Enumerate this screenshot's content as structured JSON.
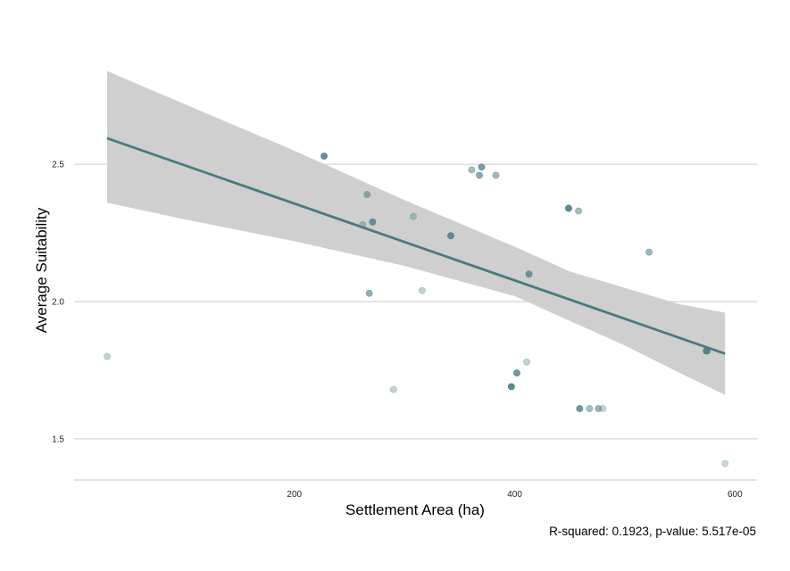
{
  "chart_data": {
    "type": "scatter",
    "title": "",
    "xlabel": "Settlement Area (ha)",
    "ylabel": "Average Suitability",
    "caption": "R-squared:  0.1923, p-value: 5.517e-05",
    "xlim": [
      0,
      620
    ],
    "ylim": [
      1.35,
      2.92
    ],
    "x_ticks": [
      200,
      400,
      600
    ],
    "y_ticks": [
      1.5,
      2.0,
      2.5
    ],
    "x_tick_labels": [
      "200",
      "400",
      "600"
    ],
    "y_tick_labels": [
      "1.5",
      "2.0",
      "2.5"
    ],
    "grid": "horizontal major lines",
    "colors": {
      "points": "#4d7d86",
      "fit_line": "#4a7a80",
      "ribbon": "#cfcfcf",
      "grid": "#d4d4d4"
    },
    "points": [
      {
        "x": 30,
        "y": 1.8,
        "alpha": 0.35
      },
      {
        "x": 227,
        "y": 2.53,
        "alpha": 0.85
      },
      {
        "x": 262,
        "y": 2.28,
        "alpha": 0.4
      },
      {
        "x": 266,
        "y": 2.39,
        "alpha": 0.55
      },
      {
        "x": 268,
        "y": 2.03,
        "alpha": 0.6
      },
      {
        "x": 271,
        "y": 2.29,
        "alpha": 0.8
      },
      {
        "x": 290,
        "y": 1.68,
        "alpha": 0.35
      },
      {
        "x": 308,
        "y": 2.31,
        "alpha": 0.35
      },
      {
        "x": 316,
        "y": 2.04,
        "alpha": 0.35
      },
      {
        "x": 342,
        "y": 2.24,
        "alpha": 0.85
      },
      {
        "x": 361,
        "y": 2.48,
        "alpha": 0.5
      },
      {
        "x": 368,
        "y": 2.46,
        "alpha": 0.65
      },
      {
        "x": 370,
        "y": 2.49,
        "alpha": 0.75
      },
      {
        "x": 383,
        "y": 2.46,
        "alpha": 0.55
      },
      {
        "x": 397,
        "y": 1.69,
        "alpha": 0.9
      },
      {
        "x": 402,
        "y": 1.74,
        "alpha": 0.8
      },
      {
        "x": 411,
        "y": 1.78,
        "alpha": 0.35
      },
      {
        "x": 413,
        "y": 2.1,
        "alpha": 0.75
      },
      {
        "x": 449,
        "y": 2.34,
        "alpha": 0.9
      },
      {
        "x": 458,
        "y": 2.33,
        "alpha": 0.5
      },
      {
        "x": 459,
        "y": 1.61,
        "alpha": 0.8
      },
      {
        "x": 468,
        "y": 1.61,
        "alpha": 0.5
      },
      {
        "x": 476,
        "y": 1.61,
        "alpha": 0.55
      },
      {
        "x": 480,
        "y": 1.61,
        "alpha": 0.35
      },
      {
        "x": 522,
        "y": 2.18,
        "alpha": 0.55
      },
      {
        "x": 574,
        "y": 1.82,
        "alpha": 0.9
      },
      {
        "x": 575,
        "y": 1.82,
        "alpha": 0.5
      },
      {
        "x": 591,
        "y": 1.41,
        "alpha": 0.3
      }
    ],
    "fit": {
      "x": [
        30,
        591
      ],
      "y": [
        2.595,
        1.81
      ]
    },
    "ribbon": {
      "x": [
        30,
        100,
        200,
        300,
        400,
        450,
        500,
        550,
        591
      ],
      "upper": [
        2.84,
        2.72,
        2.55,
        2.37,
        2.2,
        2.11,
        2.05,
        1.99,
        1.96
      ],
      "lower": [
        2.36,
        2.3,
        2.22,
        2.13,
        2.02,
        1.93,
        1.84,
        1.74,
        1.66
      ]
    }
  }
}
